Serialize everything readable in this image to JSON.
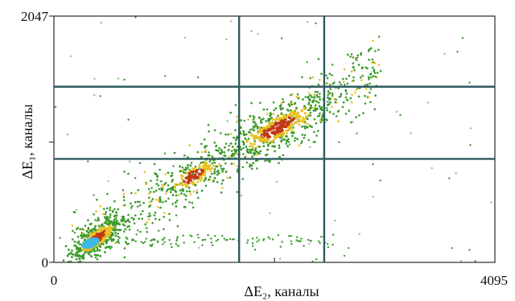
{
  "chart_data": {
    "type": "heatmap",
    "title": "",
    "xlabel": "ΔE₂, каналы",
    "ylabel": "ΔE₁, каналы",
    "xlim": [
      0,
      4095
    ],
    "ylim": [
      0,
      2047
    ],
    "x_tick_labels": [
      "0",
      "4095"
    ],
    "y_tick_labels": [
      "0",
      "2047"
    ],
    "x_minor_ticks": [
      2048
    ],
    "y_minor_ticks": [
      1000
    ],
    "grid": false,
    "cut_lines": {
      "vertical": [
        1720,
        2510
      ],
      "horizontal": [
        1460,
        860
      ]
    },
    "clusters": [
      {
        "x": 400,
        "y": 200,
        "sx": 110,
        "sy": 55,
        "tilt": 0.55,
        "n": 420,
        "peak": "cyan"
      },
      {
        "x": 1300,
        "y": 720,
        "sx": 140,
        "sy": 60,
        "tilt": 0.45,
        "n": 160,
        "peak": "red"
      },
      {
        "x": 2080,
        "y": 1120,
        "sx": 230,
        "sy": 75,
        "tilt": 0.45,
        "n": 380,
        "peak": "red"
      }
    ],
    "colors": {
      "frame": "#3a3a3a",
      "cut_line": "#2e5b62",
      "low": "#3a9a2a",
      "mid": "#e8c020",
      "high": "#c23818",
      "peak": "#3fb8e8"
    }
  }
}
